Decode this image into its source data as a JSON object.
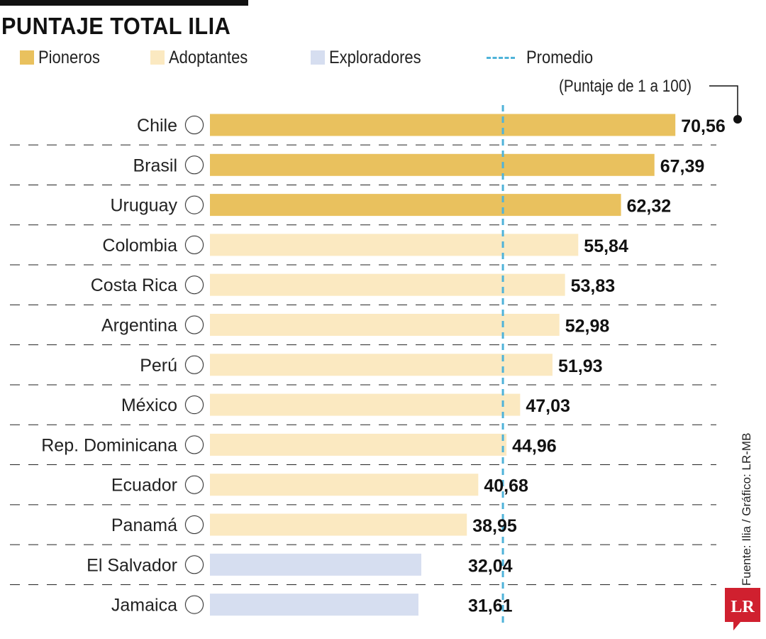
{
  "title": "PUNTAJE TOTAL ILIA",
  "legend": [
    {
      "label": "Pioneros",
      "color": "#e9c15e"
    },
    {
      "label": "Adoptantes",
      "color": "#fbe9c1"
    },
    {
      "label": "Exploradores",
      "color": "#d6def0"
    },
    {
      "label": "Promedio",
      "color": "#4fb3d9"
    }
  ],
  "note": "(Puntaje de 1 a 100)",
  "source": "Fuente: Ilia / Gráfico: LR-MB",
  "logo_text": "LR",
  "colors": {
    "pioneros": "#e9c15e",
    "adoptantes": "#fbe9c1",
    "exploradores": "#d6def0",
    "promedio": "#4fb3d9",
    "logo": "#d0202f"
  },
  "chart_data": {
    "type": "bar",
    "orientation": "horizontal",
    "title": "PUNTAJE TOTAL ILIA",
    "xlabel": "",
    "ylabel": "",
    "xlim": [
      0,
      100
    ],
    "average_line": {
      "label": "Promedio",
      "value": 44.2
    },
    "categories": [
      "Chile",
      "Brasil",
      "Uruguay",
      "Colombia",
      "Costa Rica",
      "Argentina",
      "Perú",
      "México",
      "Rep. Dominicana",
      "Ecuador",
      "Panamá",
      "El Salvador",
      "Jamaica"
    ],
    "values": [
      70.56,
      67.39,
      62.32,
      55.84,
      53.83,
      52.98,
      51.93,
      47.03,
      44.96,
      40.68,
      38.95,
      32.04,
      31.61
    ],
    "value_labels": [
      "70,56",
      "67,39",
      "62,32",
      "55,84",
      "53,83",
      "52,98",
      "51,93",
      "47,03",
      "44,96",
      "40,68",
      "38,95",
      "32,04",
      "31,61"
    ],
    "groups": [
      "Pioneros",
      "Pioneros",
      "Pioneros",
      "Adoptantes",
      "Adoptantes",
      "Adoptantes",
      "Adoptantes",
      "Adoptantes",
      "Adoptantes",
      "Adoptantes",
      "Adoptantes",
      "Exploradores",
      "Exploradores"
    ],
    "flags": [
      "flag-chile-icon",
      "flag-brasil-icon",
      "flag-uruguay-icon",
      "flag-colombia-icon",
      "flag-costa-rica-icon",
      "flag-argentina-icon",
      "flag-peru-icon",
      "flag-mexico-icon",
      "flag-panama-icon",
      "flag-ecuador-icon",
      "flag-dominican-republic-icon",
      "flag-el-salvador-icon",
      "flag-jamaica-icon"
    ]
  }
}
